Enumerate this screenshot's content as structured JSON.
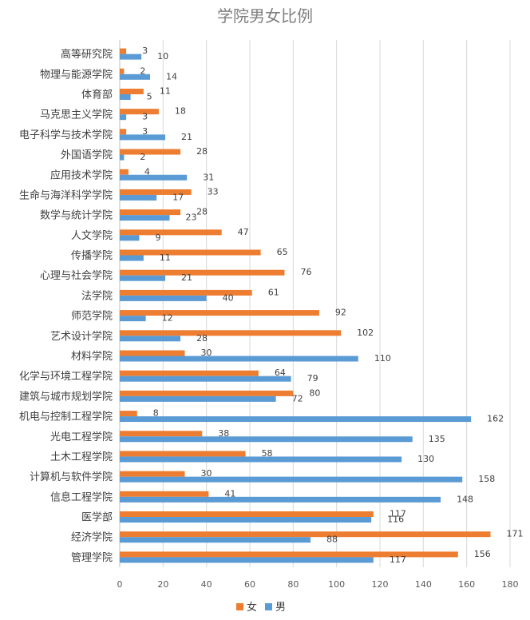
{
  "chart_data": {
    "type": "bar",
    "orientation": "horizontal",
    "title": "学院男女比例",
    "xlabel": "",
    "ylabel": "",
    "xlim": [
      0,
      180
    ],
    "xticks": [
      0,
      20,
      40,
      60,
      80,
      100,
      120,
      140,
      160,
      180
    ],
    "grid": "vertical",
    "legend_position": "bottom",
    "categories": [
      "高等研究院",
      "物理与能源学院",
      "体育部",
      "马克思主义学院",
      "电子科学与技术学院",
      "外国语学院",
      "应用技术学院",
      "生命与海洋科学学院",
      "数学与统计学院",
      "人文学院",
      "传播学院",
      "心理与社会学院",
      "法学院",
      "师范学院",
      "艺术设计学院",
      "材料学院",
      "化学与环境工程学院",
      "建筑与城市规划学院",
      "机电与控制工程学院",
      "光电工程学院",
      "土木工程学院",
      "计算机与软件学院",
      "信息工程学院",
      "医学部",
      "经济学院",
      "管理学院"
    ],
    "series": [
      {
        "name": "女",
        "color": "#ED7D31",
        "values": [
          3,
          2,
          11,
          18,
          3,
          28,
          4,
          33,
          28,
          47,
          65,
          76,
          61,
          92,
          102,
          30,
          64,
          80,
          8,
          38,
          58,
          30,
          41,
          117,
          171,
          156
        ]
      },
      {
        "name": "男",
        "color": "#5B9BD5",
        "values": [
          10,
          14,
          5,
          3,
          21,
          2,
          31,
          17,
          23,
          9,
          11,
          21,
          40,
          12,
          28,
          110,
          79,
          72,
          162,
          135,
          130,
          158,
          148,
          116,
          88,
          117
        ]
      }
    ]
  }
}
